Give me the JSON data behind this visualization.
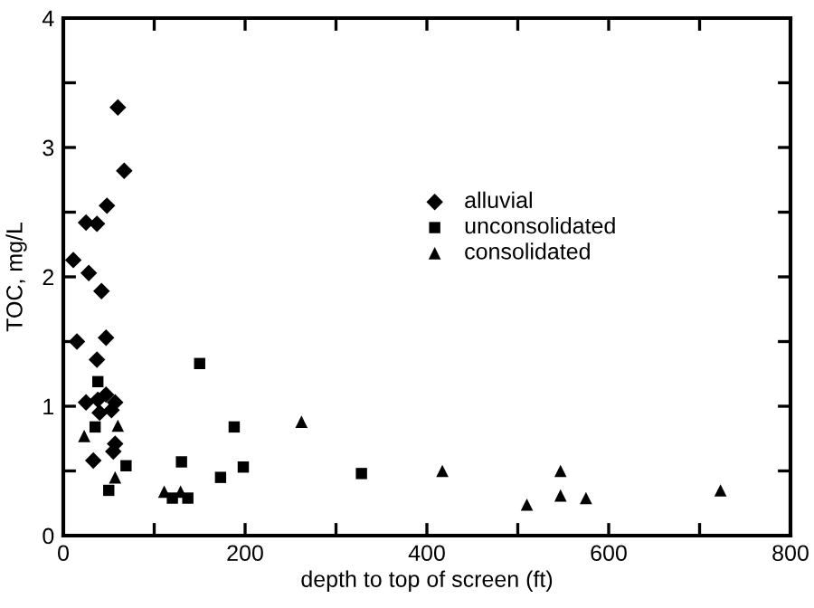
{
  "chart_data": {
    "type": "scatter",
    "xlabel": "depth to top of screen (ft)",
    "ylabel": "TOC, mg/L",
    "xlim": [
      0,
      800
    ],
    "ylim": [
      0,
      4
    ],
    "xticks": [
      0,
      {
        "value": 100,
        "label": null
      },
      200,
      {
        "value": 300,
        "label": null
      },
      400,
      {
        "value": 500,
        "label": null
      },
      600,
      {
        "value": 700,
        "label": null
      },
      800
    ],
    "yticks": [
      0,
      {
        "value": 0.5,
        "label": null
      },
      1,
      {
        "value": 1.5,
        "label": null
      },
      2,
      {
        "value": 2.5,
        "label": null
      },
      3,
      {
        "value": 3.5,
        "label": null
      },
      4
    ],
    "grid": false,
    "legend": "center",
    "tick_labels": "xy",
    "series": [
      {
        "name": "alluvial",
        "color": "#000000",
        "marker": "diamond",
        "x": [
          60,
          67,
          48,
          25,
          37,
          11,
          28,
          42,
          15,
          47,
          37,
          25,
          38,
          47,
          40,
          57,
          53,
          33,
          57,
          55
        ],
        "values": [
          3.31,
          2.82,
          2.55,
          2.42,
          2.41,
          2.13,
          2.03,
          1.89,
          1.5,
          1.53,
          1.36,
          1.03,
          1.05,
          1.09,
          0.95,
          1.03,
          0.97,
          0.58,
          0.71,
          0.65
        ]
      },
      {
        "name": "unconsolidated",
        "color": "#000000",
        "marker": "square",
        "x": [
          38,
          35,
          50,
          69,
          150,
          130,
          120,
          137,
          173,
          188,
          198,
          328
        ],
        "values": [
          1.19,
          0.84,
          0.35,
          0.54,
          1.33,
          0.57,
          0.29,
          0.29,
          0.45,
          0.84,
          0.53,
          0.48
        ]
      },
      {
        "name": "consolidated",
        "color": "#000000",
        "marker": "triangle",
        "x": [
          23,
          60,
          57,
          111,
          129,
          262,
          417,
          510,
          547,
          547,
          575,
          723
        ],
        "values": [
          0.77,
          0.85,
          0.45,
          0.34,
          0.34,
          0.88,
          0.5,
          0.24,
          0.5,
          0.31,
          0.29,
          0.35
        ]
      }
    ]
  }
}
